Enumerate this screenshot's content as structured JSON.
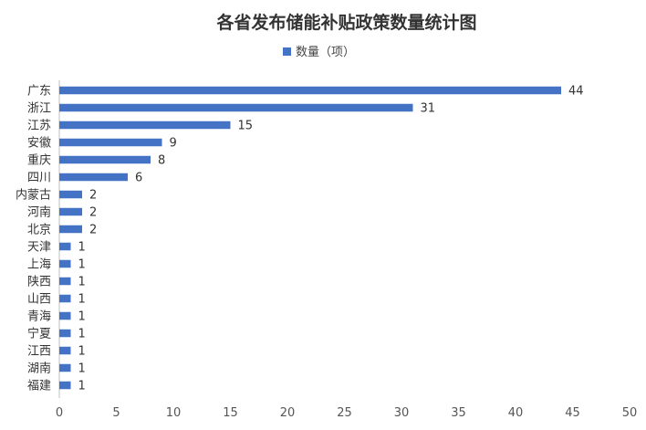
{
  "chart_data": {
    "type": "bar",
    "orientation": "horizontal",
    "title": "各省发布储能补贴政策数量统计图",
    "legend": {
      "position": "top",
      "entries": [
        "数量（项）"
      ]
    },
    "series": [
      {
        "name": "数量（项）",
        "color": "#4472c4",
        "values": [
          44,
          31,
          15,
          9,
          8,
          6,
          2,
          2,
          2,
          1,
          1,
          1,
          1,
          1,
          1,
          1,
          1,
          1
        ]
      }
    ],
    "categories": [
      "广东",
      "浙江",
      "江苏",
      "安徽",
      "重庆",
      "四川",
      "内蒙古",
      "河南",
      "北京",
      "天津",
      "上海",
      "陕西",
      "山西",
      "青海",
      "宁夏",
      "江西",
      "湖南",
      "福建"
    ],
    "xlim": [
      0,
      50
    ],
    "xticks": [
      0,
      5,
      10,
      15,
      20,
      25,
      30,
      35,
      40,
      45,
      50
    ],
    "grid": false,
    "data_labels": true
  }
}
